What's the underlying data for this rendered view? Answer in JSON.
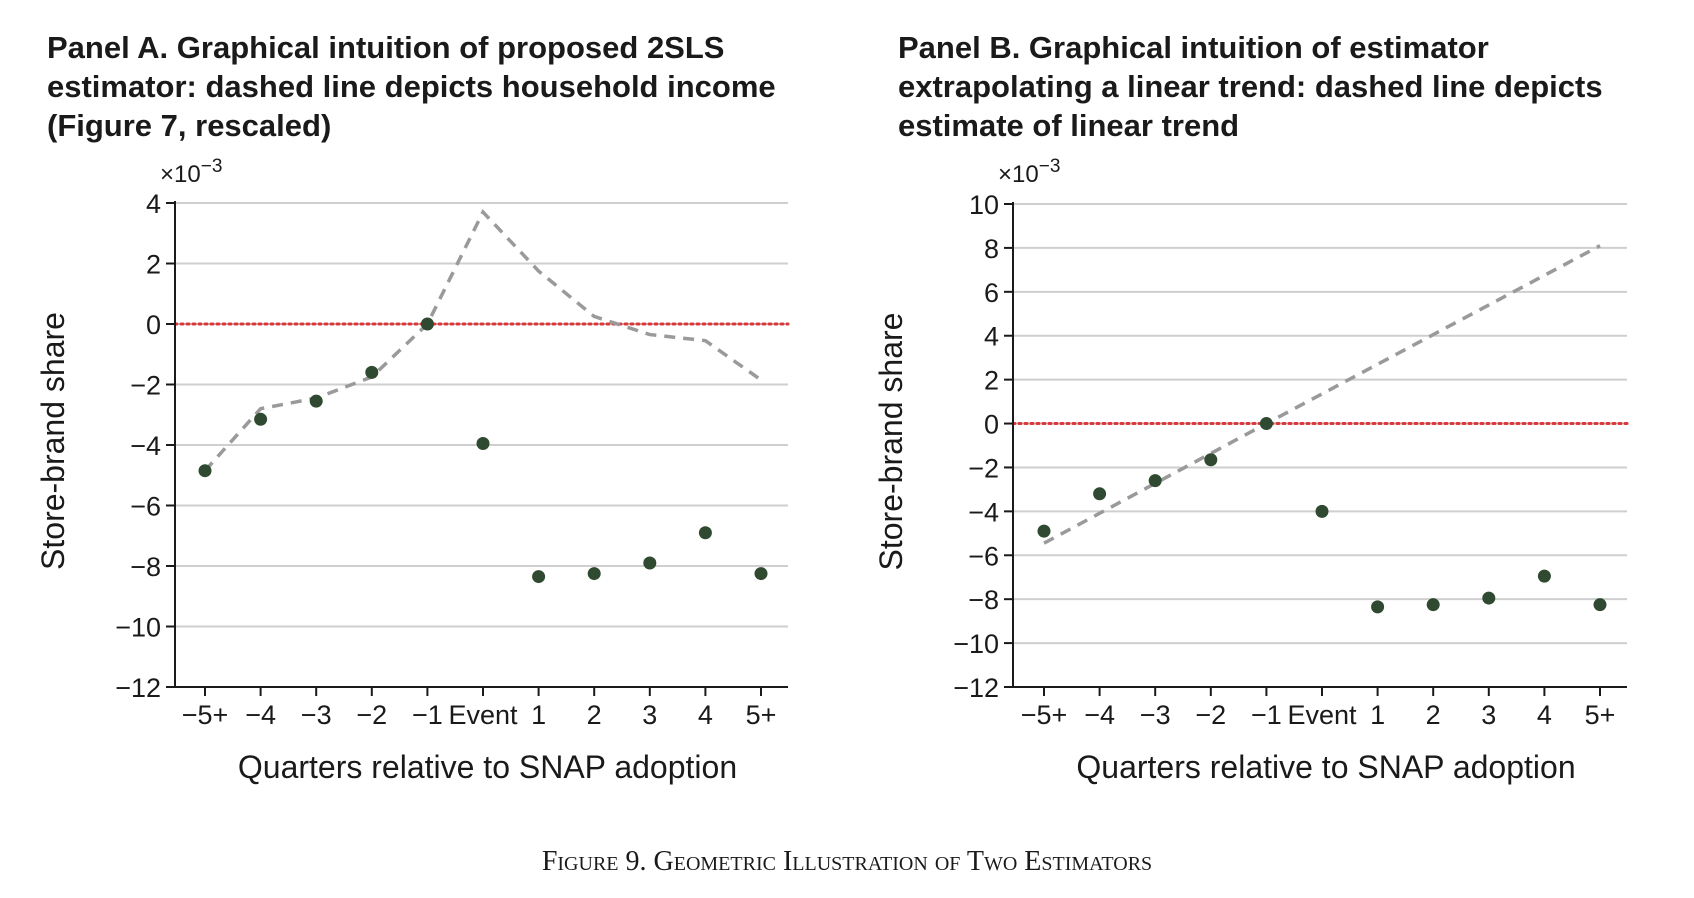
{
  "figure_caption": "Figure 9. Geometric Illustration of Two Estimators",
  "colors": {
    "points": "#2f4a30",
    "dashed_line": "#9a9a9a",
    "zero_line": "#d9383a",
    "grid": "#cfcfcf",
    "axis": "#1a1a1a"
  },
  "chart_data": [
    {
      "type": "scatter",
      "title": "Panel A. Graphical intuition of proposed 2SLS estimator: dashed line depicts household income (Figure 7, rescaled)",
      "xlabel": "Quarters relative to SNAP adoption",
      "ylabel": "Store-brand share",
      "y_multiplier": "×10",
      "y_multiplier_exp": "−3",
      "categories": [
        "−5+",
        "−4",
        "−3",
        "−2",
        "−1",
        "Event",
        "1",
        "2",
        "3",
        "4",
        "5+"
      ],
      "ylim": [
        -12,
        4
      ],
      "yticks": [
        4,
        2,
        0,
        -2,
        -4,
        -6,
        -8,
        -10,
        -12
      ],
      "ytick_labels": [
        "4",
        "2",
        "0",
        "−2",
        "−4",
        "−6",
        "−8",
        "−10",
        "−12"
      ],
      "grid": true,
      "zero_line": "dotted red",
      "series": [
        {
          "kind": "points",
          "values": [
            -4.85,
            -3.15,
            -2.55,
            -1.6,
            0,
            -3.95,
            -8.35,
            -8.25,
            -7.9,
            -6.9,
            -8.25
          ]
        },
        {
          "kind": "dashed",
          "values": [
            -4.85,
            -2.8,
            -2.45,
            -1.75,
            0,
            3.7,
            1.75,
            0.25,
            -0.35,
            -0.55,
            -1.85
          ]
        }
      ]
    },
    {
      "type": "scatter",
      "title": "Panel B. Graphical intuition of estimator extrapolating a linear trend: dashed line depicts estimate of linear trend",
      "xlabel": "Quarters relative to SNAP adoption",
      "ylabel": "Store-brand share",
      "y_multiplier": "×10",
      "y_multiplier_exp": "−3",
      "categories": [
        "−5+",
        "−4",
        "−3",
        "−2",
        "−1",
        "Event",
        "1",
        "2",
        "3",
        "4",
        "5+"
      ],
      "ylim": [
        -12,
        10
      ],
      "yticks": [
        10,
        8,
        6,
        4,
        2,
        0,
        -2,
        -4,
        -6,
        -8,
        -10,
        -12
      ],
      "ytick_labels": [
        "10",
        "8",
        "6",
        "4",
        "2",
        "0",
        "−2",
        "−4",
        "−6",
        "−8",
        "−10",
        "−12"
      ],
      "grid": true,
      "zero_line": "dotted red",
      "series": [
        {
          "kind": "points",
          "values": [
            -4.9,
            -3.2,
            -2.6,
            -1.65,
            0,
            -4.0,
            -8.35,
            -8.25,
            -7.95,
            -6.95,
            -8.25
          ]
        },
        {
          "kind": "dashed",
          "values": [
            -5.45,
            null,
            null,
            null,
            0,
            null,
            null,
            null,
            null,
            null,
            8.1
          ]
        }
      ]
    }
  ]
}
